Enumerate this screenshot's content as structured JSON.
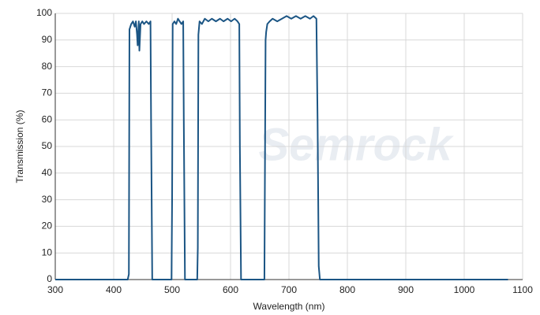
{
  "chart_data": {
    "type": "line",
    "xlabel": "Wavelength (nm)",
    "ylabel": "Transmission (%)",
    "watermark": "Semrock",
    "x": [
      300,
      424,
      426,
      427,
      430,
      433,
      436,
      438,
      440,
      441,
      443,
      444,
      446,
      449,
      452,
      456,
      460,
      463,
      464,
      466,
      499,
      500,
      501,
      504,
      507,
      510,
      513,
      516,
      519,
      520,
      522,
      543,
      544,
      545,
      547,
      551,
      556,
      562,
      568,
      575,
      582,
      588,
      595,
      601,
      607,
      612,
      615,
      616,
      618,
      658,
      660,
      661,
      663,
      667,
      672,
      680,
      688,
      696,
      704,
      712,
      720,
      728,
      736,
      742,
      747,
      749,
      751,
      753,
      1075
    ],
    "series": [
      {
        "name": "Transmission",
        "color": "#1b5584",
        "values": [
          0,
          0,
          2,
          94,
          96,
          97,
          95,
          97,
          92,
          88,
          97,
          86,
          96,
          97,
          96,
          97,
          96,
          97,
          60,
          0,
          0,
          30,
          96,
          97,
          96,
          98,
          97,
          96,
          97,
          60,
          0,
          0,
          12,
          92,
          97,
          96,
          98,
          97,
          98,
          97,
          98,
          97,
          98,
          97,
          98,
          97,
          96,
          50,
          0,
          0,
          90,
          93,
          96,
          97,
          98,
          97,
          98,
          99,
          98,
          99,
          98,
          99,
          98,
          99,
          98,
          60,
          5,
          0,
          0
        ]
      }
    ],
    "xlim": [
      300,
      1100
    ],
    "ylim": [
      0,
      100
    ],
    "xticks": [
      300,
      400,
      500,
      600,
      700,
      800,
      900,
      1000,
      1100
    ],
    "yticks": [
      0,
      10,
      20,
      30,
      40,
      50,
      60,
      70,
      80,
      90,
      100
    ],
    "grid": true
  }
}
